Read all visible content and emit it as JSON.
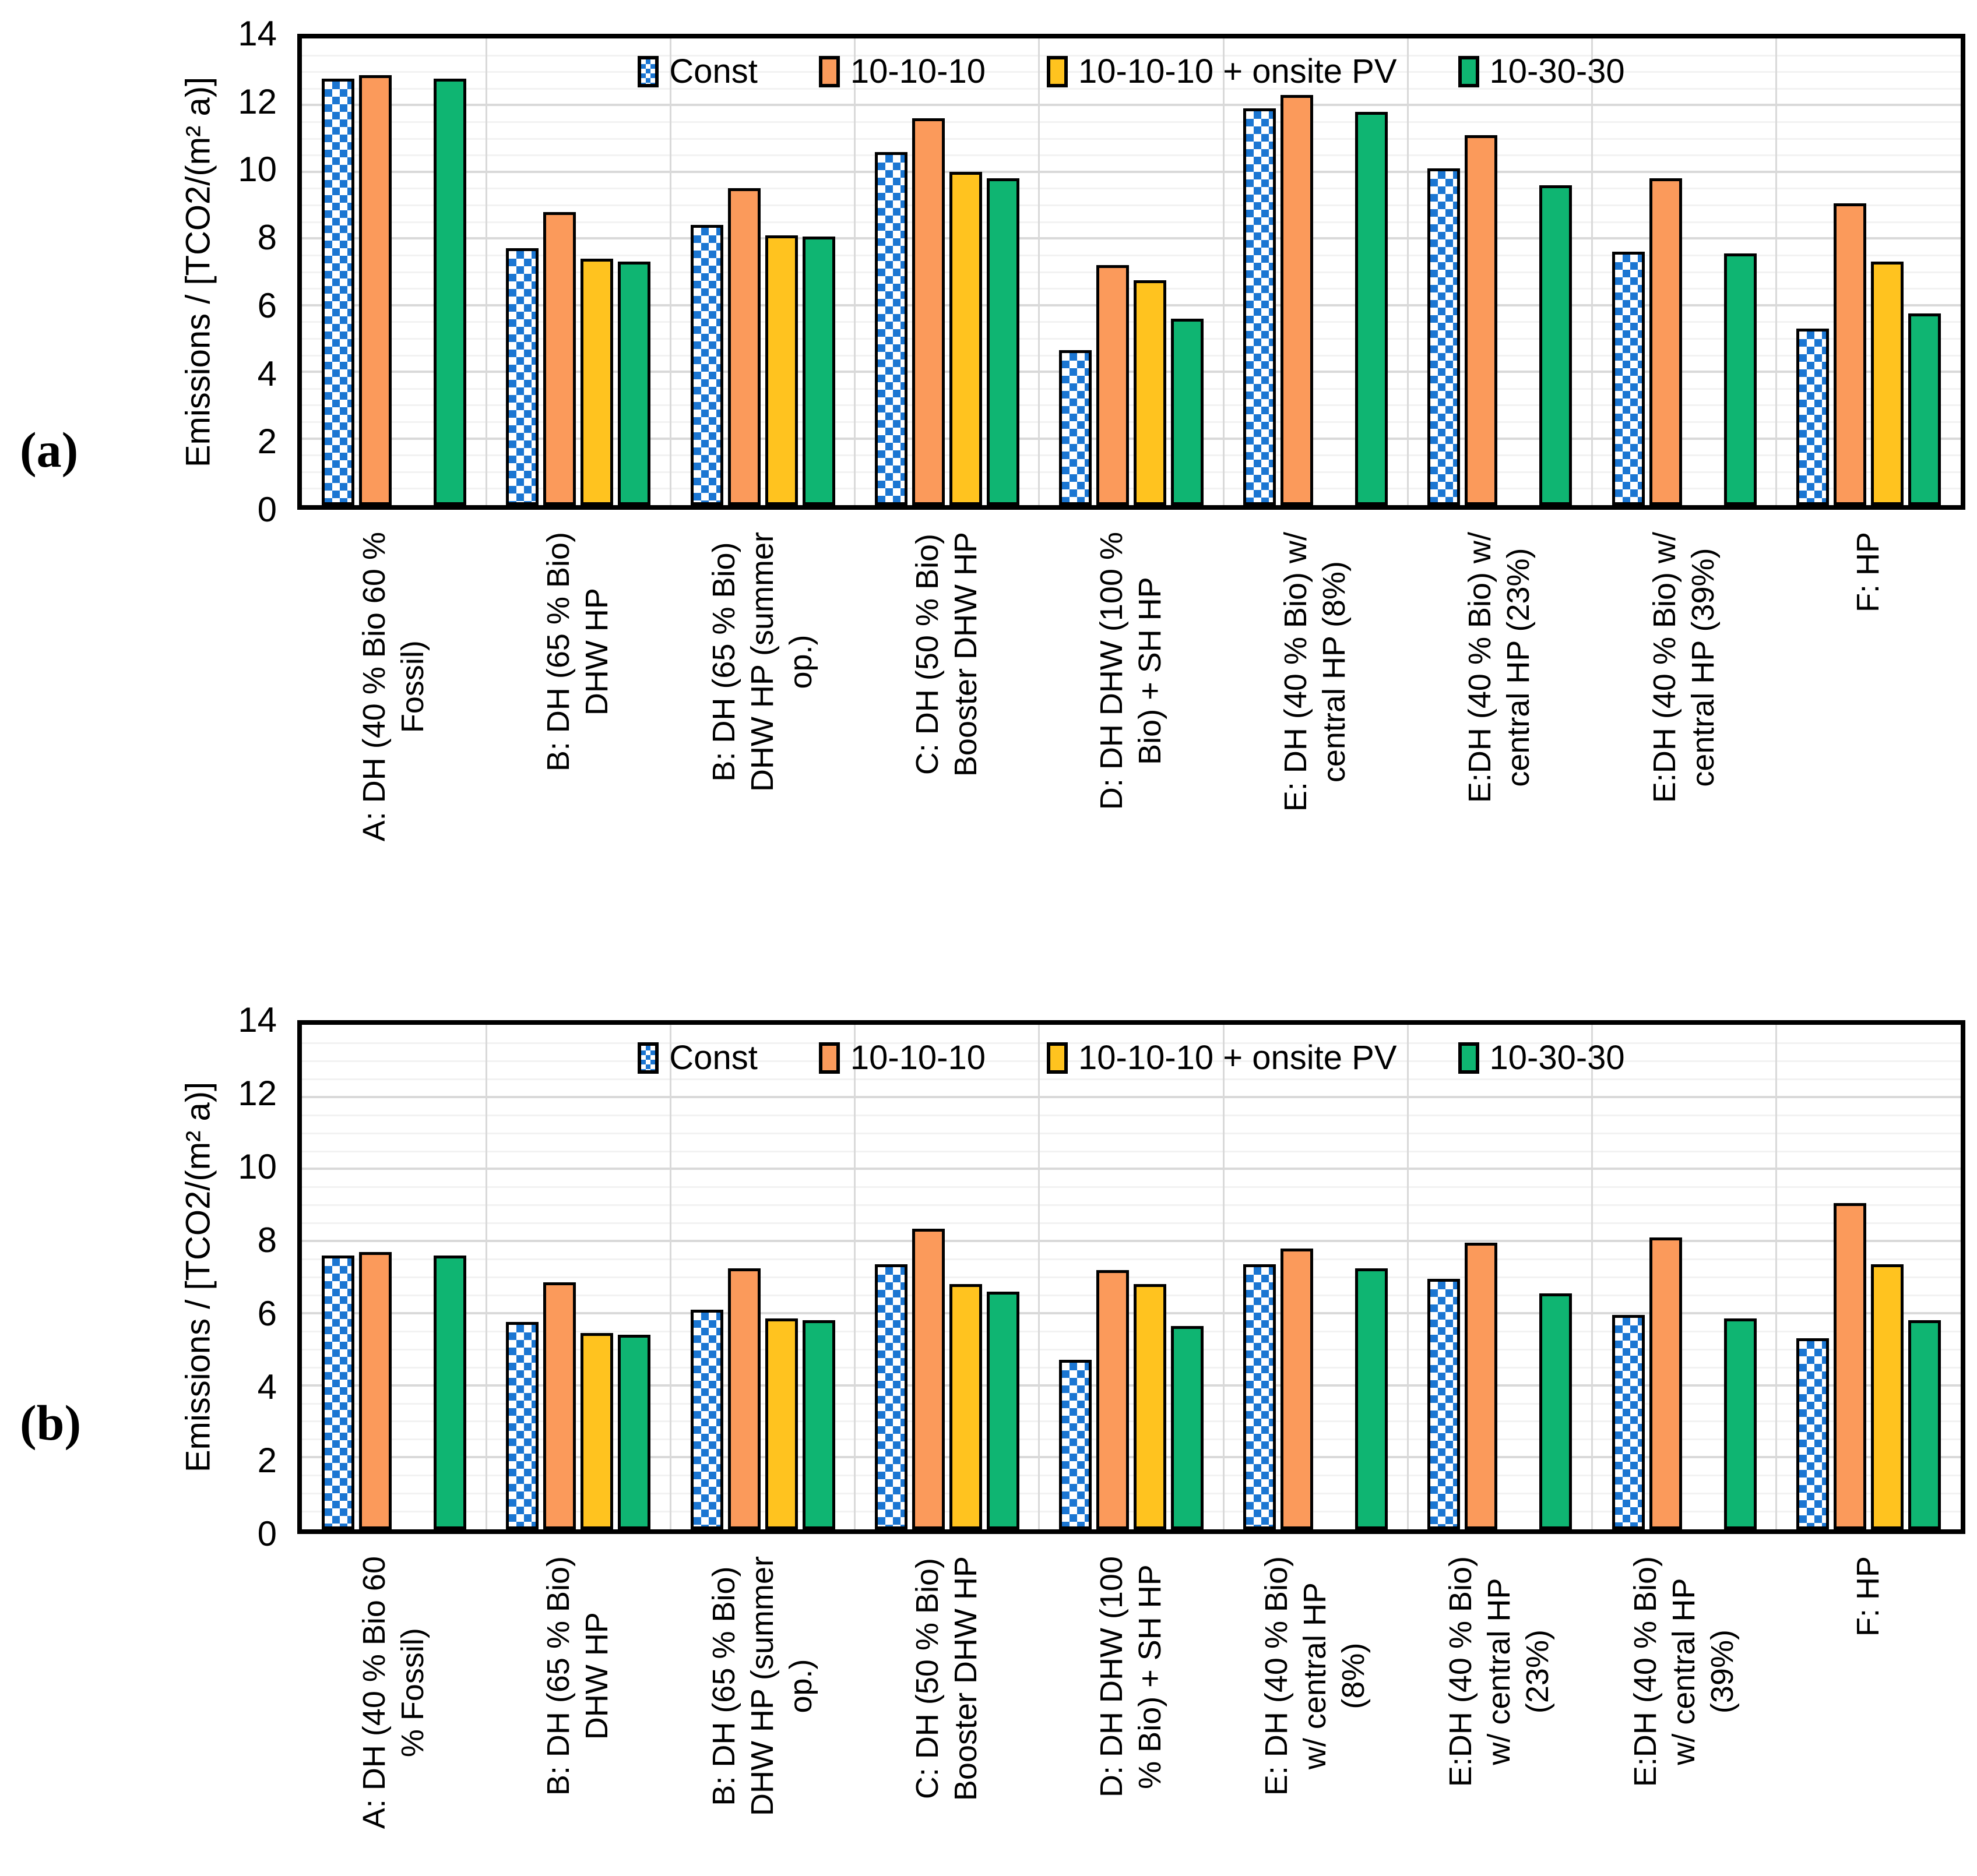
{
  "figure": {
    "panel_a_label": "(a)",
    "panel_b_label": "(b)"
  },
  "legend": {
    "items": [
      {
        "label": "Const",
        "fill": "checker",
        "color": "#1b76d2"
      },
      {
        "label": "10-10-10",
        "fill": "solid",
        "color": "#fb9a5b"
      },
      {
        "label": "10-10-10 + onsite PV",
        "fill": "solid",
        "color": "#ffc31f"
      },
      {
        "label": "10-30-30",
        "fill": "solid",
        "color": "#0fb572"
      }
    ],
    "position": "top-center-inside"
  },
  "chart_data": [
    {
      "id": "a",
      "type": "bar",
      "panel_label": "(a)",
      "ylabel": "Emissions / [TCO2/(m² a)]",
      "xlabel": "",
      "ylim": [
        0,
        14
      ],
      "yticks": [
        0,
        2,
        4,
        6,
        8,
        10,
        12,
        14
      ],
      "grid": {
        "major_step": 2,
        "minor_step": 0.5,
        "vertical_category_lines": true
      },
      "categories": [
        "A: DH (40 % Bio 60 %\nFossil)",
        "B: DH (65 % Bio)\nDHW HP",
        "B: DH (65 % Bio)\nDHW HP (summer\nop.)",
        "C: DH (50 % Bio)\nBooster DHW HP",
        "D: DH DHW (100 %\nBio) + SH HP",
        "E: DH (40 % Bio) w/\ncentral HP (8%)",
        "E:DH (40 % Bio) w/\ncentral HP (23%)",
        "E:DH (40 % Bio) w/\ncentral HP (39%)",
        "F: HP"
      ],
      "series": [
        {
          "name": "Const",
          "values": [
            12.8,
            7.7,
            8.4,
            10.6,
            4.65,
            11.9,
            10.1,
            7.6,
            5.3
          ]
        },
        {
          "name": "10-10-10",
          "values": [
            12.9,
            8.8,
            9.5,
            11.6,
            7.2,
            12.3,
            11.1,
            9.8,
            9.05
          ]
        },
        {
          "name": "10-10-10 + onsite PV",
          "values": [
            null,
            7.4,
            8.1,
            10.0,
            6.75,
            null,
            null,
            null,
            7.3
          ]
        },
        {
          "name": "10-30-30",
          "values": [
            12.8,
            7.3,
            8.05,
            9.8,
            5.6,
            11.8,
            9.6,
            7.55,
            5.75
          ]
        }
      ]
    },
    {
      "id": "b",
      "type": "bar",
      "panel_label": "(b)",
      "ylabel": "Emissions / [TCO2/(m² a)]",
      "xlabel": "",
      "ylim": [
        0,
        14
      ],
      "yticks": [
        0,
        2,
        4,
        6,
        8,
        10,
        12,
        14
      ],
      "grid": {
        "major_step": 2,
        "minor_step": 0.5,
        "vertical_category_lines": true
      },
      "categories": [
        "A: DH (40 % Bio 60\n% Fossil)",
        "B: DH (65 % Bio)\nDHW HP",
        "B: DH (65 % Bio)\nDHW HP (summer\nop.)",
        "C: DH (50 % Bio)\nBooster DHW HP",
        "D: DH DHW (100\n% Bio) + SH HP",
        "E: DH (40 % Bio)\nw/ central HP\n(8%)",
        "E:DH (40 % Bio)\nw/ central HP\n(23%)",
        "E:DH (40 % Bio)\nw/ central HP\n(39%)",
        "F: HP"
      ],
      "series": [
        {
          "name": "Const",
          "values": [
            7.6,
            5.75,
            6.1,
            7.35,
            4.7,
            7.35,
            6.95,
            5.95,
            5.3
          ]
        },
        {
          "name": "10-10-10",
          "values": [
            7.7,
            6.85,
            7.25,
            8.35,
            7.2,
            7.8,
            7.95,
            8.1,
            9.05
          ]
        },
        {
          "name": "10-10-10 + onsite PV",
          "values": [
            null,
            5.45,
            5.85,
            6.8,
            6.8,
            null,
            null,
            null,
            7.35
          ]
        },
        {
          "name": "10-30-30",
          "values": [
            7.6,
            5.4,
            5.8,
            6.6,
            5.65,
            7.25,
            6.55,
            5.85,
            5.8
          ]
        }
      ]
    }
  ]
}
